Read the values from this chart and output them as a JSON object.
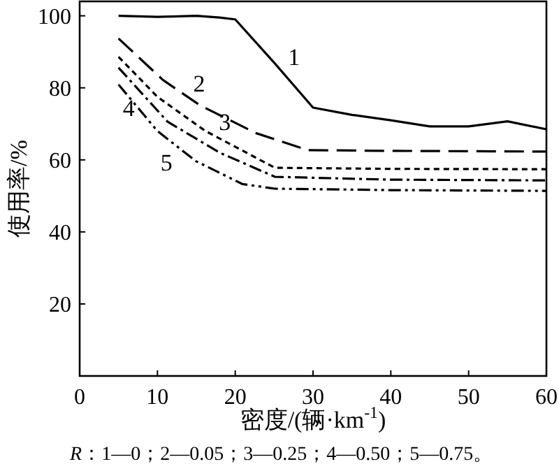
{
  "chart_data": {
    "type": "line",
    "xlabel": "密度/(辆·km$^{-1}$)",
    "ylabel": "使用率/%",
    "xlim": [
      0,
      60
    ],
    "ylim": [
      0,
      104
    ],
    "xticks": [
      0,
      10,
      20,
      30,
      40,
      50,
      60
    ],
    "yticks": [
      20,
      40,
      60,
      80,
      100
    ],
    "grid": false,
    "marker": "none",
    "series": [
      {
        "name": "1",
        "color": "#000000",
        "line_style": "solid",
        "x": [
          5,
          10,
          15,
          18,
          20,
          25,
          30,
          35,
          40,
          45,
          50,
          55,
          60
        ],
        "values": [
          100,
          99.7,
          100,
          99.5,
          99,
          87,
          74.5,
          72.5,
          71,
          69.3,
          69.3,
          70.7,
          68.5
        ]
      },
      {
        "name": "2",
        "color": "#000000",
        "line_style": "dashed",
        "x": [
          5,
          10.7,
          15.5,
          22.7,
          29.3,
          40,
          60
        ],
        "values": [
          93.7,
          82.2,
          75.1,
          67.4,
          62.7,
          62.5,
          62.3
        ]
      },
      {
        "name": "3",
        "color": "#000000",
        "line_style": "dotted",
        "x": [
          5,
          10,
          16.1,
          25.1,
          40,
          60
        ],
        "values": [
          88.6,
          77.5,
          68.1,
          57.8,
          57.5,
          57.4
        ]
      },
      {
        "name": "4",
        "color": "#000000",
        "line_style": "dashdot",
        "x": [
          5,
          11.3,
          18,
          25.1,
          40,
          60
        ],
        "values": [
          85.6,
          70.6,
          62,
          55.3,
          54.5,
          54.3
        ]
      },
      {
        "name": "5",
        "color": "#000000",
        "line_style": "dashdotdot",
        "x": [
          5,
          10,
          14.9,
          20.9,
          25.1,
          40,
          60
        ],
        "values": [
          80.9,
          68,
          59.7,
          53.3,
          52,
          51.6,
          51.4
        ]
      }
    ],
    "annotations": [
      "*R*：1—0；2—0.05；3—0.25；4—0.50；5—0.75。"
    ]
  }
}
